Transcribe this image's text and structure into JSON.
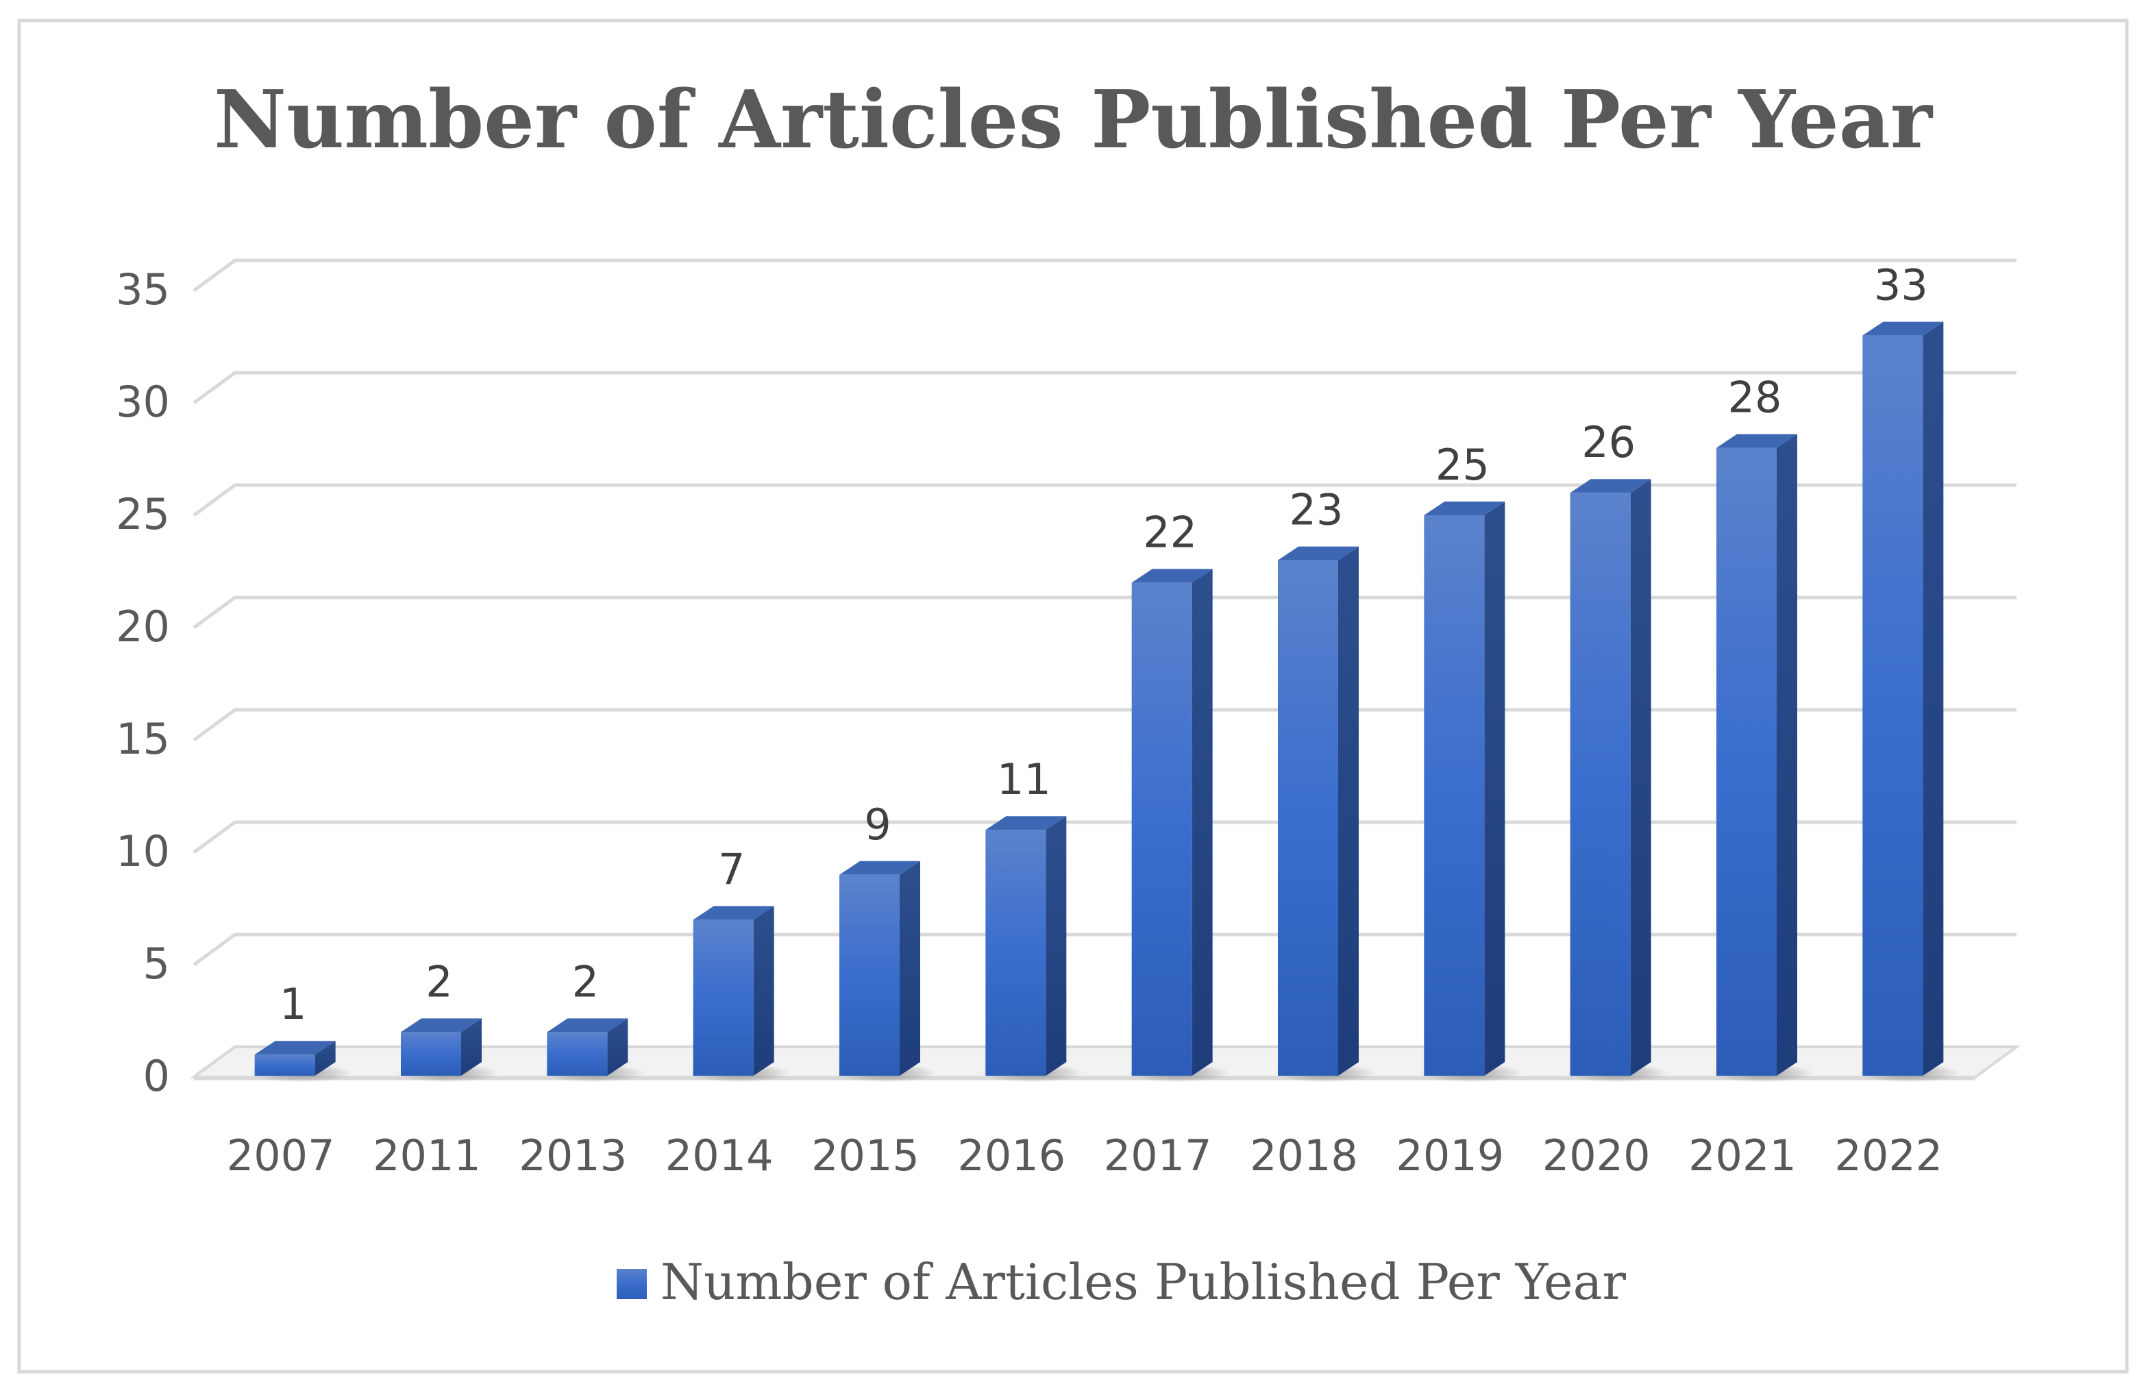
{
  "chart_data": {
    "type": "bar",
    "title": "Number of Articles Published Per Year",
    "xlabel": "",
    "ylabel": "",
    "categories": [
      "2007",
      "2011",
      "2013",
      "2014",
      "2015",
      "2016",
      "2017",
      "2018",
      "2019",
      "2020",
      "2021",
      "2022"
    ],
    "series": [
      {
        "name": "Number of Articles Published Per Year",
        "values": [
          1,
          2,
          2,
          7,
          9,
          11,
          22,
          23,
          25,
          26,
          28,
          33
        ]
      }
    ],
    "ylim": [
      0,
      35
    ],
    "yticks": [
      0,
      5,
      10,
      15,
      20,
      25,
      30,
      35
    ],
    "grid": true,
    "legend": "bottom",
    "data_labels": true,
    "style": "3d-column",
    "colors": {
      "bar": "#4472C4",
      "grid": "#D9D9D9",
      "frame": "#D9D9D9",
      "text": "#595959"
    }
  }
}
